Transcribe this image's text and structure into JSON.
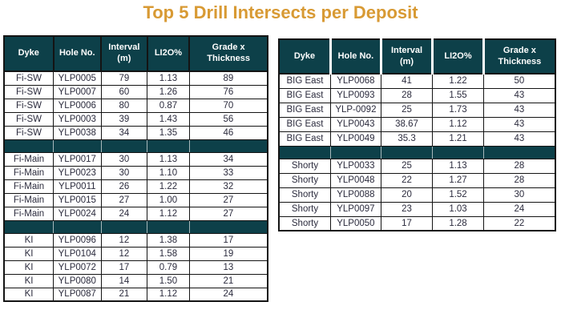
{
  "title": "Top 5 Drill Intersects per Deposit",
  "colors": {
    "header_teal": "#0d4049",
    "title_orange": "#d89a34",
    "cell_text": "#2b2b3d",
    "border_black": "#141414"
  },
  "chart_data": [
    {
      "type": "table",
      "title": "Left table - Fi deposits and KI",
      "columns": [
        "Dyke",
        "Hole No.",
        "Interval\n(m)",
        "LI2O%",
        "Grade x\nThickness"
      ],
      "groups": [
        {
          "name": "Fi-SW",
          "rows": [
            [
              "Fi-SW",
              "YLP0005",
              "79",
              "1.13",
              "89"
            ],
            [
              "Fi-SW",
              "YLP0007",
              "60",
              "1.26",
              "76"
            ],
            [
              "Fi-SW",
              "YLP0006",
              "80",
              "0.87",
              "70"
            ],
            [
              "Fi-SW",
              "YLP0003",
              "39",
              "1.43",
              "56"
            ],
            [
              "Fi-SW",
              "YLP0038",
              "34",
              "1.35",
              "46"
            ]
          ]
        },
        {
          "name": "Fi-Main",
          "rows": [
            [
              "Fi-Main",
              "YLP0017",
              "30",
              "1.13",
              "34"
            ],
            [
              "Fi-Main",
              "YLP0023",
              "30",
              "1.10",
              "33"
            ],
            [
              "Fi-Main",
              "YLP0011",
              "26",
              "1.22",
              "32"
            ],
            [
              "Fi-Main",
              "YLP0015",
              "27",
              "1.00",
              "27"
            ],
            [
              "Fi-Main",
              "YLP0024",
              "24",
              "1.12",
              "27"
            ]
          ]
        },
        {
          "name": "KI",
          "rows": [
            [
              "KI",
              "YLP0096",
              "12",
              "1.38",
              "17"
            ],
            [
              "KI",
              "YLP0104",
              "12",
              "1.58",
              "19"
            ],
            [
              "KI",
              "YLP0072",
              "17",
              "0.79",
              "13"
            ],
            [
              "KI",
              "YLP0080",
              "14",
              "1.50",
              "21"
            ],
            [
              "KI",
              "YLP0087",
              "21",
              "1.12",
              "24"
            ]
          ]
        }
      ]
    },
    {
      "type": "table",
      "title": "Right table - BIG East and Shorty",
      "columns": [
        "Dyke",
        "Hole No.",
        "Interval\n(m)",
        "LI2O%",
        "Grade x\nThickness"
      ],
      "groups": [
        {
          "name": "BIG East",
          "rows": [
            [
              "BIG East",
              "YLP0068",
              "41",
              "1.22",
              "50"
            ],
            [
              "BIG East",
              "YLP0093",
              "28",
              "1.55",
              "43"
            ],
            [
              "BIG East",
              "YLP-0092",
              "25",
              "1.73",
              "43"
            ],
            [
              "BIG East",
              "YLP0043",
              "38.67",
              "1.12",
              "43"
            ],
            [
              "BIG East",
              "YLP0049",
              "35.3",
              "1.21",
              "43"
            ]
          ]
        },
        {
          "name": "Shorty",
          "rows": [
            [
              "Shorty",
              "YLP0033",
              "25",
              "1.13",
              "28"
            ],
            [
              "Shorty",
              "YLP0048",
              "22",
              "1.27",
              "28"
            ],
            [
              "Shorty",
              "YLP0088",
              "20",
              "1.52",
              "30"
            ],
            [
              "Shorty",
              "YLP0097",
              "23",
              "1.03",
              "24"
            ],
            [
              "Shorty",
              "YLP0050",
              "17",
              "1.28",
              "22"
            ]
          ]
        }
      ]
    }
  ]
}
